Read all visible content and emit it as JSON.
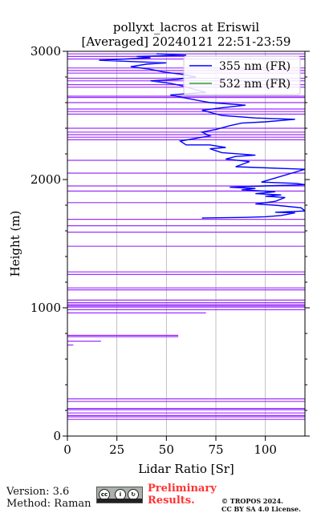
{
  "chart_data": {
    "type": "line",
    "title_line1": "pollyxt_lacros at Eriswil",
    "title_line2": "[Averaged] 20240121 22:51-23:59",
    "xlabel": "Lidar Ratio [Sr]",
    "ylabel": "Height (m)",
    "xlim": [
      0,
      120
    ],
    "ylim": [
      0,
      3000
    ],
    "xticks": [
      0,
      25,
      50,
      75,
      100
    ],
    "yticks": [
      0,
      1000,
      2000,
      3000
    ],
    "legend_position": "top-right",
    "grid": "vertical",
    "series": [
      {
        "name": "355 nm (FR)",
        "color": "#0000ff",
        "points": [
          [
            68,
            1700
          ],
          [
            90,
            1705
          ],
          [
            100,
            1710
          ],
          [
            108,
            1720
          ],
          [
            115,
            1740
          ],
          [
            105,
            1745
          ],
          [
            120,
            1755
          ],
          [
            118,
            1780
          ],
          [
            105,
            1800
          ],
          [
            95,
            1810
          ],
          [
            105,
            1830
          ],
          [
            110,
            1860
          ],
          [
            100,
            1870
          ],
          [
            108,
            1880
          ],
          [
            95,
            1890
          ],
          [
            105,
            1905
          ],
          [
            88,
            1920
          ],
          [
            95,
            1930
          ],
          [
            82,
            1940
          ],
          [
            99,
            1950
          ],
          [
            120,
            1960
          ],
          [
            116,
            1970
          ],
          [
            98,
            1980
          ],
          [
            120,
            2080
          ],
          [
            85,
            2100
          ],
          [
            92,
            2140
          ],
          [
            80,
            2160
          ],
          [
            85,
            2180
          ],
          [
            95,
            2190
          ],
          [
            78,
            2210
          ],
          [
            72,
            2240
          ],
          [
            80,
            2250
          ],
          [
            72,
            2270
          ],
          [
            60,
            2270
          ],
          [
            57,
            2300
          ],
          [
            68,
            2330
          ],
          [
            72,
            2340
          ],
          [
            68,
            2370
          ],
          [
            75,
            2390
          ],
          [
            82,
            2420
          ],
          [
            88,
            2440
          ],
          [
            100,
            2450
          ],
          [
            115,
            2470
          ],
          [
            95,
            2480
          ],
          [
            78,
            2500
          ],
          [
            68,
            2540
          ],
          [
            78,
            2560
          ],
          [
            90,
            2580
          ],
          [
            72,
            2600
          ],
          [
            58,
            2640
          ],
          [
            52,
            2660
          ],
          [
            70,
            2680
          ],
          [
            65,
            2700
          ],
          [
            58,
            2730
          ],
          [
            52,
            2750
          ],
          [
            42,
            2770
          ],
          [
            55,
            2780
          ],
          [
            65,
            2800
          ],
          [
            58,
            2820
          ],
          [
            48,
            2840
          ],
          [
            42,
            2860
          ],
          [
            32,
            2880
          ],
          [
            40,
            2900
          ],
          [
            50,
            2910
          ],
          [
            16,
            2930
          ],
          [
            42,
            2950
          ],
          [
            35,
            2960
          ],
          [
            60,
            2970
          ],
          [
            45,
            2980
          ]
        ]
      },
      {
        "name": "532 nm (FR)",
        "color": "#2ca02c",
        "points": []
      },
      {
        "name": "",
        "color": "#9b30ff",
        "points": [
          [
            0,
            130
          ],
          [
            120,
            130
          ],
          [
            0,
            150
          ],
          [
            120,
            150
          ],
          [
            0,
            160
          ],
          [
            120,
            160
          ],
          [
            0,
            180
          ],
          [
            120,
            180
          ],
          [
            0,
            205
          ],
          [
            120,
            205
          ],
          [
            0,
            215
          ],
          [
            120,
            215
          ],
          [
            0,
            270
          ],
          [
            120,
            270
          ],
          [
            0,
            290
          ],
          [
            120,
            290
          ],
          [
            0,
            710
          ],
          [
            3,
            710
          ],
          [
            0,
            740
          ],
          [
            17,
            740
          ],
          [
            0,
            775
          ],
          [
            56,
            775
          ],
          [
            0,
            785
          ],
          [
            56,
            785
          ],
          [
            0,
            960
          ],
          [
            70,
            960
          ],
          [
            0,
            985
          ],
          [
            120,
            985
          ],
          [
            0,
            1005
          ],
          [
            120,
            1005
          ],
          [
            0,
            1015
          ],
          [
            120,
            1015
          ],
          [
            0,
            1025
          ],
          [
            120,
            1025
          ],
          [
            0,
            1040
          ],
          [
            120,
            1040
          ],
          [
            0,
            1060
          ],
          [
            120,
            1060
          ],
          [
            0,
            1140
          ],
          [
            120,
            1140
          ],
          [
            0,
            1155
          ],
          [
            120,
            1155
          ],
          [
            0,
            1260
          ],
          [
            120,
            1260
          ],
          [
            0,
            1280
          ],
          [
            120,
            1280
          ],
          [
            0,
            1480
          ],
          [
            120,
            1480
          ],
          [
            0,
            1590
          ],
          [
            120,
            1590
          ],
          [
            0,
            1640
          ],
          [
            120,
            1640
          ],
          [
            0,
            1690
          ],
          [
            120,
            1690
          ],
          [
            0,
            1820
          ],
          [
            120,
            1820
          ],
          [
            0,
            1910
          ],
          [
            120,
            1910
          ],
          [
            0,
            1950
          ],
          [
            120,
            1950
          ],
          [
            0,
            2050
          ],
          [
            120,
            2050
          ],
          [
            0,
            2150
          ],
          [
            120,
            2150
          ],
          [
            0,
            2310
          ],
          [
            120,
            2310
          ],
          [
            0,
            2330
          ],
          [
            120,
            2330
          ],
          [
            0,
            2350
          ],
          [
            120,
            2350
          ],
          [
            0,
            2370
          ],
          [
            120,
            2370
          ],
          [
            0,
            2400
          ],
          [
            120,
            2400
          ],
          [
            0,
            2510
          ],
          [
            120,
            2510
          ],
          [
            0,
            2530
          ],
          [
            120,
            2530
          ],
          [
            0,
            2550
          ],
          [
            120,
            2550
          ],
          [
            0,
            2600
          ],
          [
            120,
            2600
          ],
          [
            0,
            2640
          ],
          [
            120,
            2640
          ],
          [
            0,
            2650
          ],
          [
            120,
            2650
          ],
          [
            0,
            2720
          ],
          [
            120,
            2720
          ],
          [
            0,
            2740
          ],
          [
            120,
            2740
          ],
          [
            0,
            2770
          ],
          [
            120,
            2770
          ],
          [
            0,
            2790
          ],
          [
            120,
            2790
          ],
          [
            0,
            2830
          ],
          [
            120,
            2830
          ],
          [
            0,
            2850
          ],
          [
            120,
            2850
          ],
          [
            0,
            2870
          ],
          [
            120,
            2870
          ],
          [
            0,
            2940
          ],
          [
            120,
            2940
          ],
          [
            0,
            2960
          ],
          [
            120,
            2960
          ],
          [
            0,
            2980
          ],
          [
            120,
            2980
          ]
        ]
      }
    ]
  },
  "footer": {
    "version": "Version: 3.6",
    "method": "Method: Raman",
    "preliminary_line1": "Preliminary",
    "preliminary_line2": "Results.",
    "copyright_line1": "© TROPOS 2024.",
    "copyright_line2": "CC BY SA 4.0 License."
  }
}
